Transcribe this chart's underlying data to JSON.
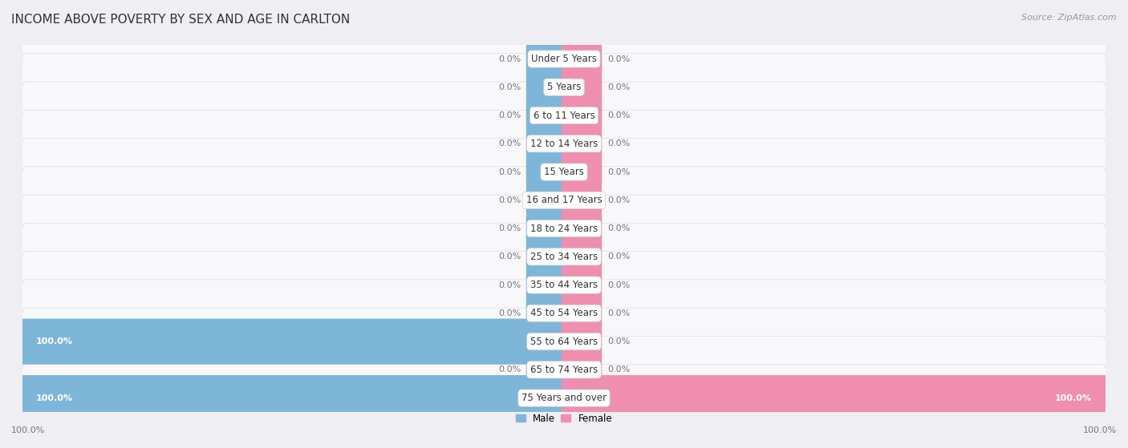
{
  "title": "INCOME ABOVE POVERTY BY SEX AND AGE IN CARLTON",
  "source": "Source: ZipAtlas.com",
  "categories": [
    "Under 5 Years",
    "5 Years",
    "6 to 11 Years",
    "12 to 14 Years",
    "15 Years",
    "16 and 17 Years",
    "18 to 24 Years",
    "25 to 34 Years",
    "35 to 44 Years",
    "45 to 54 Years",
    "55 to 64 Years",
    "65 to 74 Years",
    "75 Years and over"
  ],
  "male_values": [
    0.0,
    0.0,
    0.0,
    0.0,
    0.0,
    0.0,
    0.0,
    0.0,
    0.0,
    0.0,
    100.0,
    0.0,
    100.0
  ],
  "female_values": [
    0.0,
    0.0,
    0.0,
    0.0,
    0.0,
    0.0,
    0.0,
    0.0,
    0.0,
    0.0,
    0.0,
    0.0,
    100.0
  ],
  "male_color": "#7EB6D9",
  "female_color": "#F08EB0",
  "male_label": "Male",
  "female_label": "Female",
  "bg_color": "#eeeef3",
  "bar_bg_color": "#f8f8fb",
  "title_fontsize": 11,
  "source_fontsize": 8,
  "label_fontsize": 8.5,
  "value_fontsize": 8,
  "category_fontsize": 8.5,
  "default_stub": 6.5,
  "xlim": 100,
  "value_label_color": "#777777",
  "value_label_color_100": "#ffffff",
  "category_label_color": "#333333"
}
